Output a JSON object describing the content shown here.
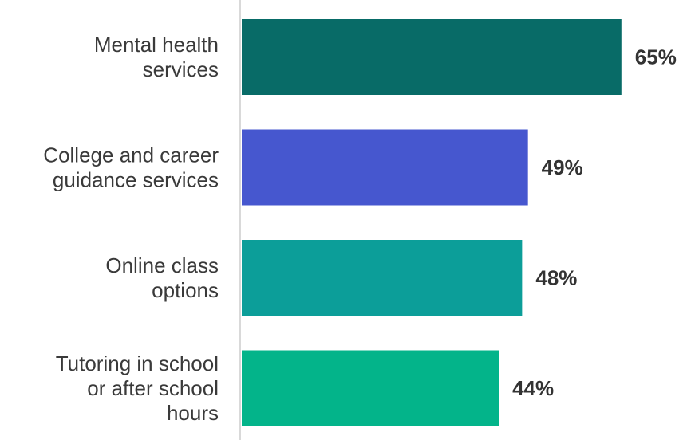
{
  "chart_data": {
    "type": "bar",
    "orientation": "horizontal",
    "categories": [
      [
        "Mental health",
        "services"
      ],
      [
        "College and career",
        "guidance services"
      ],
      [
        "Online class",
        "options"
      ],
      [
        "Tutoring in school",
        "or after school",
        "hours"
      ]
    ],
    "values": [
      65,
      49,
      48,
      44
    ],
    "value_labels": [
      "65%",
      "49%",
      "48%",
      "44%"
    ],
    "colors": [
      "#086B67",
      "#4657CF",
      "#0C9E99",
      "#03B48A"
    ],
    "xlim": [
      0,
      100
    ],
    "grid": false,
    "legend": "none",
    "axis_color": "#d9d9d9"
  }
}
